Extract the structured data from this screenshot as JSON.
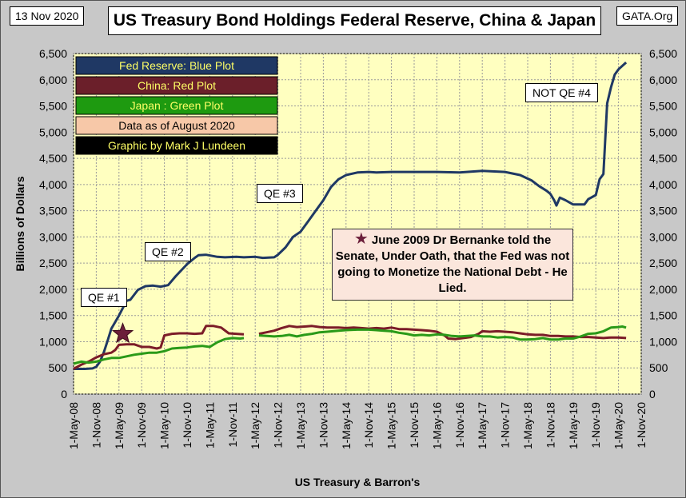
{
  "header": {
    "date": "13 Nov 2020",
    "title": "US Treasury Bond Holdings Federal Reserve, China & Japan",
    "source_tag": "GATA.Org"
  },
  "colors": {
    "plot_bg": "#ffffc0",
    "fed": "#1f3864",
    "china": "#7b1c28",
    "japan": "#2a9a18",
    "grid": "#9a9a9a"
  },
  "legend": [
    {
      "label": "Fed Reserve: Blue Plot",
      "bg": "#1f3864",
      "fg": "#ffff66"
    },
    {
      "label": "China: Red Plot",
      "bg": "#6b1f2a",
      "fg": "#ffff66"
    },
    {
      "label": "Japan : Green Plot",
      "bg": "#1e9a10",
      "fg": "#ffff66"
    },
    {
      "label": "Data as of August 2020",
      "bg": "#f7c8a8",
      "fg": "#000000"
    },
    {
      "label": "Graphic by Mark J Lundeen",
      "bg": "#000000",
      "fg": "#ffff66"
    }
  ],
  "annotations": {
    "qe1": "QE #1",
    "qe2": "QE #2",
    "qe3": "QE #3",
    "qe4": "NOT QE #4",
    "note": "June 2009 Dr Bernanke told the Senate, Under Oath, that the Fed was not going to Monetize the National Debt - He Lied.",
    "star_symbol": "★"
  },
  "chart_data": {
    "type": "line",
    "title": "US Treasury Bond Holdings Federal Reserve, China & Japan",
    "xlabel": "US Treasury & Barron's",
    "ylabel": "Billions of Dollars",
    "ylim": [
      0,
      6500
    ],
    "yticks": [
      0,
      500,
      1000,
      1500,
      2000,
      2500,
      3000,
      3500,
      4000,
      4500,
      5000,
      5500,
      6000,
      6500
    ],
    "ytick_labels": [
      "0",
      "500",
      "1,000",
      "1,500",
      "2,000",
      "2,500",
      "3,000",
      "3,500",
      "4,000",
      "4,500",
      "5,000",
      "5,500",
      "6,000",
      "6,500"
    ],
    "x_unit": "months since May 2008",
    "xlim": [
      0,
      150
    ],
    "xticks": [
      {
        "m": 0,
        "label": "1-May-08"
      },
      {
        "m": 6,
        "label": "1-Nov-08"
      },
      {
        "m": 12,
        "label": "1-May-09"
      },
      {
        "m": 18,
        "label": "1-Nov-09"
      },
      {
        "m": 24,
        "label": "1-May-10"
      },
      {
        "m": 30,
        "label": "1-Nov-10"
      },
      {
        "m": 36,
        "label": "1-May-11"
      },
      {
        "m": 42,
        "label": "1-Nov-11"
      },
      {
        "m": 48,
        "label": "1-May-12"
      },
      {
        "m": 54,
        "label": "1-Nov-12"
      },
      {
        "m": 60,
        "label": "1-May-13"
      },
      {
        "m": 66,
        "label": "1-Nov-13"
      },
      {
        "m": 72,
        "label": "1-May-14"
      },
      {
        "m": 78,
        "label": "1-Nov-14"
      },
      {
        "m": 84,
        "label": "1-May-15"
      },
      {
        "m": 90,
        "label": "1-Nov-15"
      },
      {
        "m": 96,
        "label": "1-May-16"
      },
      {
        "m": 102,
        "label": "1-Nov-16"
      },
      {
        "m": 108,
        "label": "1-May-17"
      },
      {
        "m": 114,
        "label": "1-Nov-17"
      },
      {
        "m": 120,
        "label": "1-May-18"
      },
      {
        "m": 126,
        "label": "1-Nov-18"
      },
      {
        "m": 132,
        "label": "1-May-19"
      },
      {
        "m": 138,
        "label": "1-Nov-19"
      },
      {
        "m": 144,
        "label": "1-May-20"
      },
      {
        "m": 150,
        "label": "1-Nov-20"
      }
    ],
    "series": [
      {
        "name": "Fed Reserve",
        "points": [
          [
            0,
            480
          ],
          [
            3,
            480
          ],
          [
            5,
            490
          ],
          [
            6,
            520
          ],
          [
            7,
            620
          ],
          [
            8,
            800
          ],
          [
            9,
            1020
          ],
          [
            10,
            1250
          ],
          [
            12,
            1500
          ],
          [
            14,
            1780
          ],
          [
            15,
            1800
          ],
          [
            17,
            1990
          ],
          [
            19,
            2060
          ],
          [
            21,
            2070
          ],
          [
            23,
            2050
          ],
          [
            25,
            2080
          ],
          [
            27,
            2250
          ],
          [
            30,
            2480
          ],
          [
            32,
            2600
          ],
          [
            33,
            2650
          ],
          [
            35,
            2660
          ],
          [
            38,
            2620
          ],
          [
            40,
            2610
          ],
          [
            43,
            2620
          ],
          [
            45,
            2610
          ],
          [
            48,
            2620
          ],
          [
            50,
            2600
          ],
          [
            53,
            2610
          ],
          [
            54,
            2660
          ],
          [
            56,
            2800
          ],
          [
            58,
            3000
          ],
          [
            60,
            3100
          ],
          [
            62,
            3300
          ],
          [
            64,
            3500
          ],
          [
            66,
            3700
          ],
          [
            68,
            3950
          ],
          [
            70,
            4100
          ],
          [
            72,
            4180
          ],
          [
            75,
            4230
          ],
          [
            78,
            4240
          ],
          [
            80,
            4230
          ],
          [
            84,
            4240
          ],
          [
            90,
            4240
          ],
          [
            96,
            4240
          ],
          [
            102,
            4230
          ],
          [
            108,
            4260
          ],
          [
            114,
            4240
          ],
          [
            118,
            4180
          ],
          [
            121,
            4080
          ],
          [
            123,
            3970
          ],
          [
            125,
            3880
          ],
          [
            126,
            3820
          ],
          [
            127,
            3700
          ],
          [
            127.6,
            3600
          ],
          [
            128.5,
            3750
          ],
          [
            130,
            3700
          ],
          [
            132,
            3620
          ],
          [
            135,
            3620
          ],
          [
            136,
            3720
          ],
          [
            138,
            3800
          ],
          [
            139,
            4100
          ],
          [
            140,
            4200
          ],
          [
            141,
            5550
          ],
          [
            142,
            5850
          ],
          [
            143,
            6100
          ],
          [
            144,
            6200
          ],
          [
            146,
            6330
          ]
        ]
      },
      {
        "name": "China",
        "points": [
          [
            0,
            480
          ],
          [
            2,
            560
          ],
          [
            4,
            620
          ],
          [
            6,
            700
          ],
          [
            8,
            760
          ],
          [
            10,
            790
          ],
          [
            11,
            840
          ],
          [
            12,
            940
          ],
          [
            14,
            950
          ],
          [
            16,
            950
          ],
          [
            18,
            900
          ],
          [
            20,
            900
          ],
          [
            22,
            870
          ],
          [
            23,
            890
          ],
          [
            24,
            1120
          ],
          [
            26,
            1150
          ],
          [
            28,
            1160
          ],
          [
            30,
            1160
          ],
          [
            32,
            1150
          ],
          [
            34,
            1160
          ],
          [
            35,
            1300
          ],
          [
            37,
            1300
          ],
          [
            39,
            1270
          ],
          [
            41,
            1160
          ],
          [
            43,
            1150
          ],
          [
            45,
            1140
          ],
          [
            null,
            null
          ],
          [
            49,
            1150
          ],
          [
            51,
            1180
          ],
          [
            53,
            1210
          ],
          [
            55,
            1260
          ],
          [
            57,
            1300
          ],
          [
            59,
            1280
          ],
          [
            61,
            1290
          ],
          [
            63,
            1300
          ],
          [
            65,
            1280
          ],
          [
            67,
            1270
          ],
          [
            70,
            1270
          ],
          [
            72,
            1260
          ],
          [
            74,
            1270
          ],
          [
            76,
            1260
          ],
          [
            78,
            1250
          ],
          [
            80,
            1260
          ],
          [
            82,
            1250
          ],
          [
            84,
            1270
          ],
          [
            86,
            1240
          ],
          [
            88,
            1240
          ],
          [
            90,
            1230
          ],
          [
            92,
            1220
          ],
          [
            94,
            1210
          ],
          [
            96,
            1190
          ],
          [
            98,
            1120
          ],
          [
            99,
            1060
          ],
          [
            101,
            1050
          ],
          [
            103,
            1070
          ],
          [
            105,
            1090
          ],
          [
            107,
            1150
          ],
          [
            108,
            1200
          ],
          [
            110,
            1190
          ],
          [
            112,
            1200
          ],
          [
            114,
            1190
          ],
          [
            116,
            1180
          ],
          [
            118,
            1160
          ],
          [
            120,
            1140
          ],
          [
            122,
            1130
          ],
          [
            124,
            1130
          ],
          [
            126,
            1110
          ],
          [
            128,
            1110
          ],
          [
            130,
            1100
          ],
          [
            132,
            1100
          ],
          [
            134,
            1090
          ],
          [
            136,
            1090
          ],
          [
            138,
            1080
          ],
          [
            140,
            1070
          ],
          [
            142,
            1080
          ],
          [
            144,
            1080
          ],
          [
            146,
            1070
          ]
        ]
      },
      {
        "name": "Japan",
        "points": [
          [
            0,
            580
          ],
          [
            2,
            620
          ],
          [
            4,
            600
          ],
          [
            6,
            620
          ],
          [
            8,
            660
          ],
          [
            10,
            690
          ],
          [
            12,
            690
          ],
          [
            14,
            720
          ],
          [
            16,
            750
          ],
          [
            18,
            770
          ],
          [
            20,
            790
          ],
          [
            22,
            790
          ],
          [
            24,
            820
          ],
          [
            26,
            870
          ],
          [
            28,
            880
          ],
          [
            30,
            890
          ],
          [
            32,
            910
          ],
          [
            34,
            920
          ],
          [
            36,
            900
          ],
          [
            38,
            990
          ],
          [
            40,
            1050
          ],
          [
            42,
            1070
          ],
          [
            44,
            1060
          ],
          [
            45,
            1070
          ],
          [
            null,
            null
          ],
          [
            49,
            1120
          ],
          [
            51,
            1110
          ],
          [
            53,
            1100
          ],
          [
            55,
            1110
          ],
          [
            57,
            1130
          ],
          [
            59,
            1100
          ],
          [
            61,
            1130
          ],
          [
            63,
            1150
          ],
          [
            65,
            1180
          ],
          [
            67,
            1190
          ],
          [
            70,
            1210
          ],
          [
            72,
            1220
          ],
          [
            75,
            1230
          ],
          [
            78,
            1230
          ],
          [
            80,
            1220
          ],
          [
            82,
            1210
          ],
          [
            84,
            1200
          ],
          [
            86,
            1170
          ],
          [
            88,
            1150
          ],
          [
            90,
            1120
          ],
          [
            92,
            1130
          ],
          [
            94,
            1120
          ],
          [
            96,
            1140
          ],
          [
            98,
            1130
          ],
          [
            100,
            1110
          ],
          [
            102,
            1100
          ],
          [
            104,
            1110
          ],
          [
            106,
            1120
          ],
          [
            108,
            1100
          ],
          [
            110,
            1100
          ],
          [
            112,
            1080
          ],
          [
            114,
            1090
          ],
          [
            116,
            1080
          ],
          [
            118,
            1040
          ],
          [
            120,
            1040
          ],
          [
            122,
            1050
          ],
          [
            124,
            1070
          ],
          [
            126,
            1040
          ],
          [
            128,
            1040
          ],
          [
            130,
            1060
          ],
          [
            132,
            1060
          ],
          [
            134,
            1100
          ],
          [
            136,
            1150
          ],
          [
            138,
            1160
          ],
          [
            140,
            1200
          ],
          [
            142,
            1270
          ],
          [
            144,
            1280
          ],
          [
            145,
            1290
          ],
          [
            146,
            1270
          ]
        ]
      }
    ],
    "marker": {
      "m": 13,
      "value": 1150,
      "label": "June 2009"
    }
  },
  "annotations_positions_note": "text only"
}
